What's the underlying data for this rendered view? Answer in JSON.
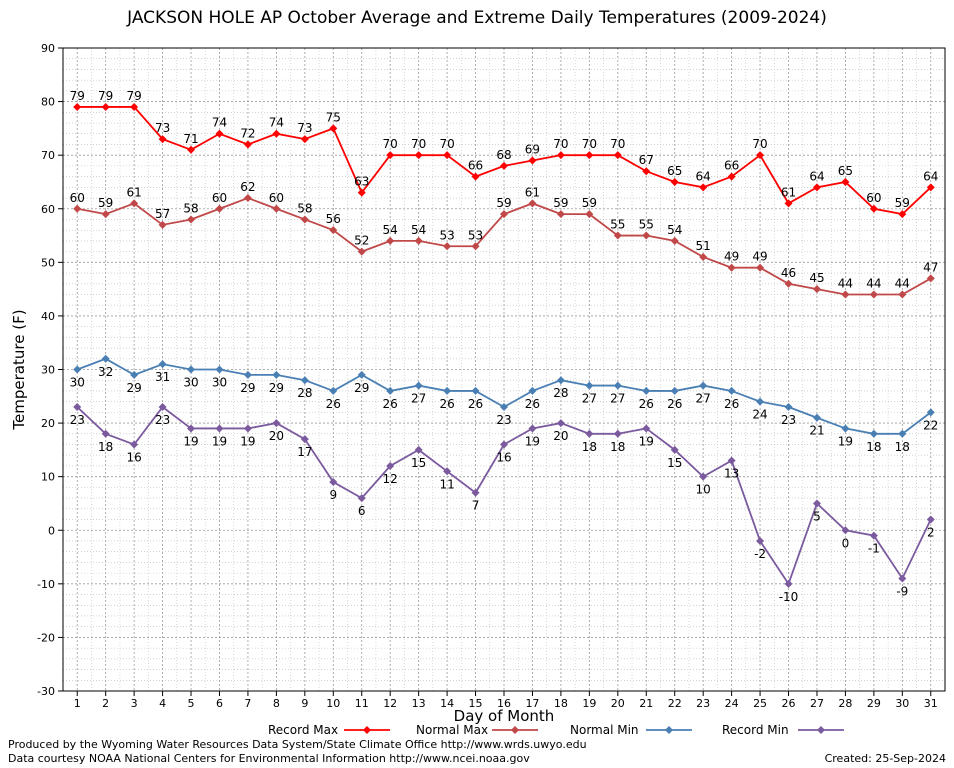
{
  "chart_data": {
    "type": "line",
    "title": "JACKSON HOLE AP October Average and Extreme Daily Temperatures (2009-2024)",
    "xlabel": "Day of Month",
    "ylabel": "Temperature (F)",
    "ylim": [
      -30,
      90
    ],
    "yticks": [
      -30,
      -20,
      -10,
      0,
      10,
      20,
      30,
      40,
      50,
      60,
      70,
      80,
      90
    ],
    "x": [
      1,
      2,
      3,
      4,
      5,
      6,
      7,
      8,
      9,
      10,
      11,
      12,
      13,
      14,
      15,
      16,
      17,
      18,
      19,
      20,
      21,
      22,
      23,
      24,
      25,
      26,
      27,
      28,
      29,
      30,
      31
    ],
    "grid": true,
    "legend_position": "bottom",
    "series": [
      {
        "name": "Record Max",
        "color": "#ff0000",
        "label_position": "above",
        "values": [
          79,
          79,
          79,
          73,
          71,
          74,
          72,
          74,
          73,
          75,
          63,
          70,
          70,
          70,
          66,
          68,
          69,
          70,
          70,
          70,
          67,
          65,
          64,
          66,
          70,
          61,
          64,
          65,
          60,
          59,
          64
        ]
      },
      {
        "name": "Normal Max",
        "color": "#c04848",
        "label_position": "above",
        "values": [
          60,
          59,
          61,
          57,
          58,
          60,
          62,
          60,
          58,
          56,
          52,
          54,
          54,
          53,
          53,
          59,
          61,
          59,
          59,
          55,
          55,
          54,
          51,
          49,
          49,
          46,
          45,
          44,
          44,
          44,
          47
        ]
      },
      {
        "name": "Normal Min",
        "color": "#4a7fb4",
        "label_position": "below",
        "values": [
          30,
          32,
          29,
          31,
          30,
          30,
          29,
          29,
          28,
          26,
          29,
          26,
          27,
          26,
          26,
          23,
          26,
          28,
          27,
          27,
          26,
          26,
          27,
          26,
          24,
          23,
          21,
          19,
          18,
          18,
          22
        ]
      },
      {
        "name": "Record Min",
        "color": "#7b5a9e",
        "label_position": "below",
        "values": [
          23,
          18,
          16,
          23,
          19,
          19,
          19,
          20,
          17,
          9,
          6,
          12,
          15,
          11,
          7,
          16,
          19,
          20,
          18,
          18,
          19,
          15,
          10,
          13,
          -2,
          -10,
          5,
          0,
          -1,
          -9,
          2
        ]
      }
    ]
  },
  "credits": {
    "produced_by": "Produced by the Wyoming Water Resources Data System/State Climate Office http://www.wrds.uwyo.edu",
    "data_courtesy": "Data courtesy NOAA National Centers for Environmental Information http://www.ncei.noaa.gov",
    "created": "Created: 25-Sep-2024"
  }
}
